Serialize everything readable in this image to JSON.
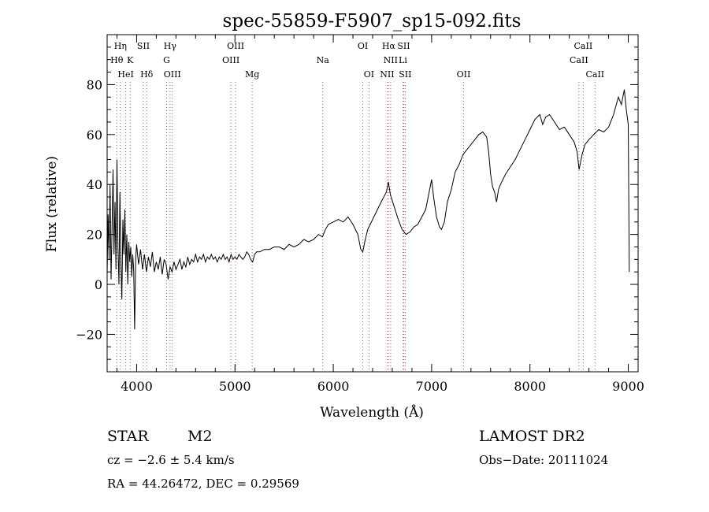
{
  "chart_data": {
    "type": "line",
    "title": "spec-55859-F5907_sp15-092.fits",
    "xlabel": "Wavelength (Å)",
    "ylabel": "Flux (relative)",
    "xlim": [
      3700,
      9100
    ],
    "ylim": [
      -35,
      100
    ],
    "xticks": [
      4000,
      5000,
      6000,
      7000,
      8000,
      9000
    ],
    "yticks": [
      -20,
      0,
      20,
      40,
      60,
      80
    ],
    "grid": false,
    "series": [
      {
        "values": [
          [
            3700,
            4
          ],
          [
            3710,
            28
          ],
          [
            3720,
            10
          ],
          [
            3730,
            40
          ],
          [
            3740,
            2
          ],
          [
            3750,
            22
          ],
          [
            3760,
            46
          ],
          [
            3770,
            12
          ],
          [
            3780,
            33
          ],
          [
            3790,
            6
          ],
          [
            3800,
            50
          ],
          [
            3810,
            15
          ],
          [
            3820,
            0
          ],
          [
            3830,
            37
          ],
          [
            3840,
            9
          ],
          [
            3850,
            -6
          ],
          [
            3860,
            26
          ],
          [
            3870,
            12
          ],
          [
            3880,
            30
          ],
          [
            3890,
            5
          ],
          [
            3900,
            20
          ],
          [
            3910,
            0
          ],
          [
            3920,
            17
          ],
          [
            3930,
            9
          ],
          [
            3940,
            15
          ],
          [
            3950,
            3
          ],
          [
            3960,
            12
          ],
          [
            3970,
            6
          ],
          [
            3980,
            -18
          ],
          [
            3990,
            10
          ],
          [
            4000,
            16
          ],
          [
            4020,
            8
          ],
          [
            4040,
            14
          ],
          [
            4060,
            6
          ],
          [
            4080,
            12
          ],
          [
            4100,
            5
          ],
          [
            4120,
            11
          ],
          [
            4140,
            7
          ],
          [
            4160,
            13
          ],
          [
            4180,
            5
          ],
          [
            4200,
            9
          ],
          [
            4220,
            6
          ],
          [
            4240,
            11
          ],
          [
            4260,
            4
          ],
          [
            4280,
            10
          ],
          [
            4300,
            8
          ],
          [
            4320,
            2
          ],
          [
            4340,
            7
          ],
          [
            4360,
            5
          ],
          [
            4380,
            9
          ],
          [
            4400,
            6
          ],
          [
            4420,
            8
          ],
          [
            4440,
            10
          ],
          [
            4460,
            6
          ],
          [
            4480,
            9
          ],
          [
            4500,
            7
          ],
          [
            4520,
            11
          ],
          [
            4540,
            8
          ],
          [
            4560,
            10
          ],
          [
            4580,
            9
          ],
          [
            4600,
            12
          ],
          [
            4620,
            9
          ],
          [
            4640,
            11
          ],
          [
            4660,
            10
          ],
          [
            4680,
            12
          ],
          [
            4700,
            9
          ],
          [
            4720,
            11
          ],
          [
            4740,
            10
          ],
          [
            4760,
            12
          ],
          [
            4780,
            10
          ],
          [
            4800,
            11
          ],
          [
            4820,
            9
          ],
          [
            4840,
            11
          ],
          [
            4860,
            10
          ],
          [
            4880,
            12
          ],
          [
            4900,
            10
          ],
          [
            4920,
            11
          ],
          [
            4940,
            9
          ],
          [
            4960,
            12
          ],
          [
            4980,
            10
          ],
          [
            5000,
            11
          ],
          [
            5020,
            10
          ],
          [
            5040,
            12
          ],
          [
            5060,
            11
          ],
          [
            5080,
            10
          ],
          [
            5100,
            11
          ],
          [
            5120,
            13
          ],
          [
            5140,
            12
          ],
          [
            5160,
            10
          ],
          [
            5180,
            9
          ],
          [
            5200,
            12
          ],
          [
            5220,
            13
          ],
          [
            5250,
            13
          ],
          [
            5300,
            14
          ],
          [
            5350,
            14
          ],
          [
            5400,
            15
          ],
          [
            5450,
            15
          ],
          [
            5500,
            14
          ],
          [
            5550,
            16
          ],
          [
            5600,
            15
          ],
          [
            5650,
            16
          ],
          [
            5700,
            18
          ],
          [
            5750,
            17
          ],
          [
            5800,
            18
          ],
          [
            5850,
            20
          ],
          [
            5890,
            19
          ],
          [
            5920,
            22
          ],
          [
            5950,
            24
          ],
          [
            6000,
            25
          ],
          [
            6050,
            26
          ],
          [
            6100,
            25
          ],
          [
            6150,
            27
          ],
          [
            6200,
            24
          ],
          [
            6250,
            20
          ],
          [
            6280,
            14
          ],
          [
            6300,
            13
          ],
          [
            6320,
            17
          ],
          [
            6350,
            22
          ],
          [
            6400,
            26
          ],
          [
            6450,
            30
          ],
          [
            6500,
            34
          ],
          [
            6540,
            37
          ],
          [
            6560,
            41
          ],
          [
            6580,
            36
          ],
          [
            6620,
            31
          ],
          [
            6660,
            26
          ],
          [
            6700,
            22
          ],
          [
            6740,
            20
          ],
          [
            6780,
            21
          ],
          [
            6820,
            23
          ],
          [
            6860,
            24
          ],
          [
            6900,
            27
          ],
          [
            6940,
            30
          ],
          [
            6980,
            38
          ],
          [
            7000,
            42
          ],
          [
            7020,
            35
          ],
          [
            7050,
            27
          ],
          [
            7080,
            23
          ],
          [
            7100,
            22
          ],
          [
            7130,
            25
          ],
          [
            7160,
            33
          ],
          [
            7200,
            38
          ],
          [
            7240,
            45
          ],
          [
            7280,
            48
          ],
          [
            7320,
            52
          ],
          [
            7360,
            54
          ],
          [
            7400,
            56
          ],
          [
            7440,
            58
          ],
          [
            7480,
            60
          ],
          [
            7520,
            61
          ],
          [
            7560,
            59
          ],
          [
            7580,
            53
          ],
          [
            7600,
            44
          ],
          [
            7620,
            39
          ],
          [
            7640,
            37
          ],
          [
            7660,
            33
          ],
          [
            7680,
            38
          ],
          [
            7700,
            40
          ],
          [
            7750,
            44
          ],
          [
            7800,
            47
          ],
          [
            7850,
            50
          ],
          [
            7900,
            54
          ],
          [
            7950,
            58
          ],
          [
            8000,
            62
          ],
          [
            8050,
            66
          ],
          [
            8100,
            68
          ],
          [
            8130,
            64
          ],
          [
            8160,
            67
          ],
          [
            8200,
            68
          ],
          [
            8250,
            65
          ],
          [
            8300,
            62
          ],
          [
            8350,
            63
          ],
          [
            8400,
            60
          ],
          [
            8450,
            57
          ],
          [
            8480,
            53
          ],
          [
            8500,
            46
          ],
          [
            8530,
            52
          ],
          [
            8560,
            56
          ],
          [
            8600,
            58
          ],
          [
            8650,
            60
          ],
          [
            8700,
            62
          ],
          [
            8750,
            61
          ],
          [
            8800,
            63
          ],
          [
            8850,
            68
          ],
          [
            8900,
            75
          ],
          [
            8930,
            72
          ],
          [
            8960,
            78
          ],
          [
            8980,
            70
          ],
          [
            9000,
            64
          ],
          [
            9010,
            5
          ]
        ]
      }
    ],
    "lines": [
      {
        "label": "Hη",
        "wavelength": 3835,
        "row": 1,
        "color": "#c05050"
      },
      {
        "label": "Hθ",
        "wavelength": 3798,
        "row": 2,
        "color": "#707070"
      },
      {
        "label": "HeI",
        "wavelength": 3889,
        "row": 3,
        "color": "#707070"
      },
      {
        "label": "K",
        "wavelength": 3934,
        "row": 2,
        "color": "#707070"
      },
      {
        "label": "SII",
        "wavelength": 4068,
        "row": 1,
        "color": "#707070"
      },
      {
        "label": "Hδ",
        "wavelength": 4102,
        "row": 3,
        "color": "#c05050"
      },
      {
        "label": "Hγ",
        "wavelength": 4340,
        "row": 1,
        "color": "#c05050"
      },
      {
        "label": "G",
        "wavelength": 4305,
        "row": 2,
        "color": "#707070"
      },
      {
        "label": "OIII",
        "wavelength": 4363,
        "row": 3,
        "color": "#707070"
      },
      {
        "label": "OIII",
        "wavelength": 5007,
        "row": 1,
        "color": "#c05050"
      },
      {
        "label": "OIII",
        "wavelength": 4959,
        "row": 2,
        "color": "#c05050"
      },
      {
        "label": "Mg",
        "wavelength": 5175,
        "row": 3,
        "color": "#c05050"
      },
      {
        "label": "Na",
        "wavelength": 5893,
        "row": 2,
        "color": "#c05050"
      },
      {
        "label": "OI",
        "wavelength": 6300,
        "row": 1,
        "color": "#707070"
      },
      {
        "label": "OI",
        "wavelength": 6363,
        "row": 3,
        "color": "#707070"
      },
      {
        "label": "Hα",
        "wavelength": 6563,
        "row": 1,
        "color": "#c05050"
      },
      {
        "label": "SII",
        "wavelength": 6716,
        "row": 1,
        "color": "#c05050"
      },
      {
        "label": "NII",
        "wavelength": 6583,
        "row": 2,
        "color": "#c05050"
      },
      {
        "label": "Li",
        "wavelength": 6708,
        "row": 2,
        "color": "#707070"
      },
      {
        "label": "NII",
        "wavelength": 6548,
        "row": 3,
        "color": "#c05050"
      },
      {
        "label": "SII",
        "wavelength": 6731,
        "row": 3,
        "color": "#c05050"
      },
      {
        "label": "OII",
        "wavelength": 7325,
        "row": 3,
        "color": "#c05050"
      },
      {
        "label": "CaII",
        "wavelength": 8542,
        "row": 1,
        "color": "#707070"
      },
      {
        "label": "CaII",
        "wavelength": 8498,
        "row": 2,
        "color": "#c05050"
      },
      {
        "label": "CaII",
        "wavelength": 8662,
        "row": 3,
        "color": "#707070"
      }
    ]
  },
  "info": {
    "object_type": "STAR",
    "subclass": "M2",
    "survey": "LAMOST DR2",
    "redshift": "cz = −2.6 ± 5.4 km/s",
    "obs_date": "Obs−Date: 20111024",
    "coordinates": "RA =  44.26472, DEC =    0.29569"
  }
}
